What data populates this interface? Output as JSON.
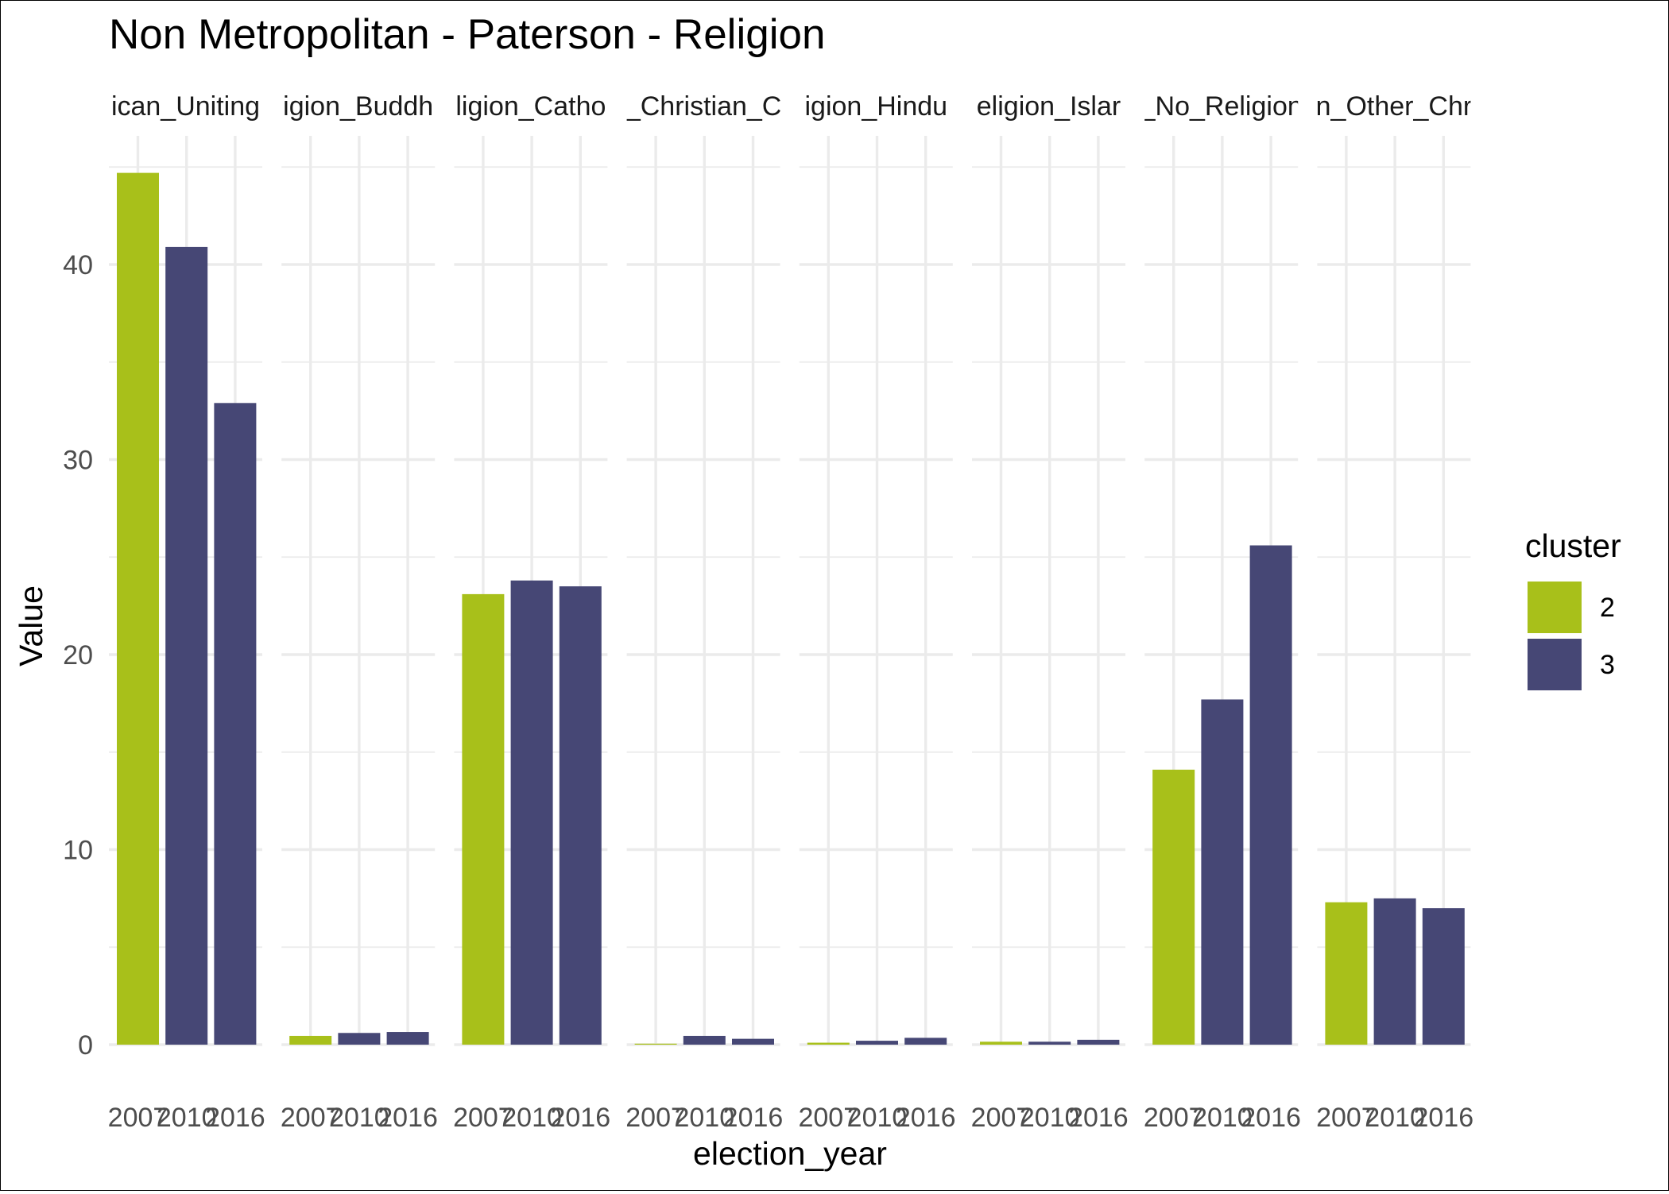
{
  "chart_data": {
    "type": "bar",
    "title": "Non Metropolitan - Paterson - Religion",
    "xlabel": "election_year",
    "ylabel": "Value",
    "ylim": [
      0,
      46
    ],
    "y_ticks": [
      "0",
      "10",
      "20",
      "30",
      "40"
    ],
    "grid": true,
    "facet_strip_labels": [
      "ican_Uniting",
      "igion_Buddh",
      "ligion_Catho",
      "_Christian_C",
      "igion_Hindu",
      "eligion_Islar",
      "_No_Religion",
      "n_Other_Chr"
    ],
    "categories": [
      "2007",
      "2010",
      "2016"
    ],
    "legend": {
      "title": "cluster",
      "position": "right",
      "entries": [
        {
          "label": "2",
          "color": "#A8C01A"
        },
        {
          "label": "3",
          "color": "#464775"
        }
      ]
    },
    "bar_cluster": [
      "2",
      "3",
      "3"
    ],
    "panels": [
      {
        "values": [
          44.7,
          40.9,
          32.9
        ]
      },
      {
        "values": [
          0.45,
          0.6,
          0.65
        ]
      },
      {
        "values": [
          23.1,
          23.8,
          23.5
        ]
      },
      {
        "values": [
          0.05,
          0.45,
          0.3
        ]
      },
      {
        "values": [
          0.1,
          0.2,
          0.35
        ]
      },
      {
        "values": [
          0.15,
          0.15,
          0.25
        ]
      },
      {
        "values": [
          14.1,
          17.7,
          25.6
        ]
      },
      {
        "values": [
          7.3,
          7.5,
          7.0
        ]
      }
    ]
  }
}
